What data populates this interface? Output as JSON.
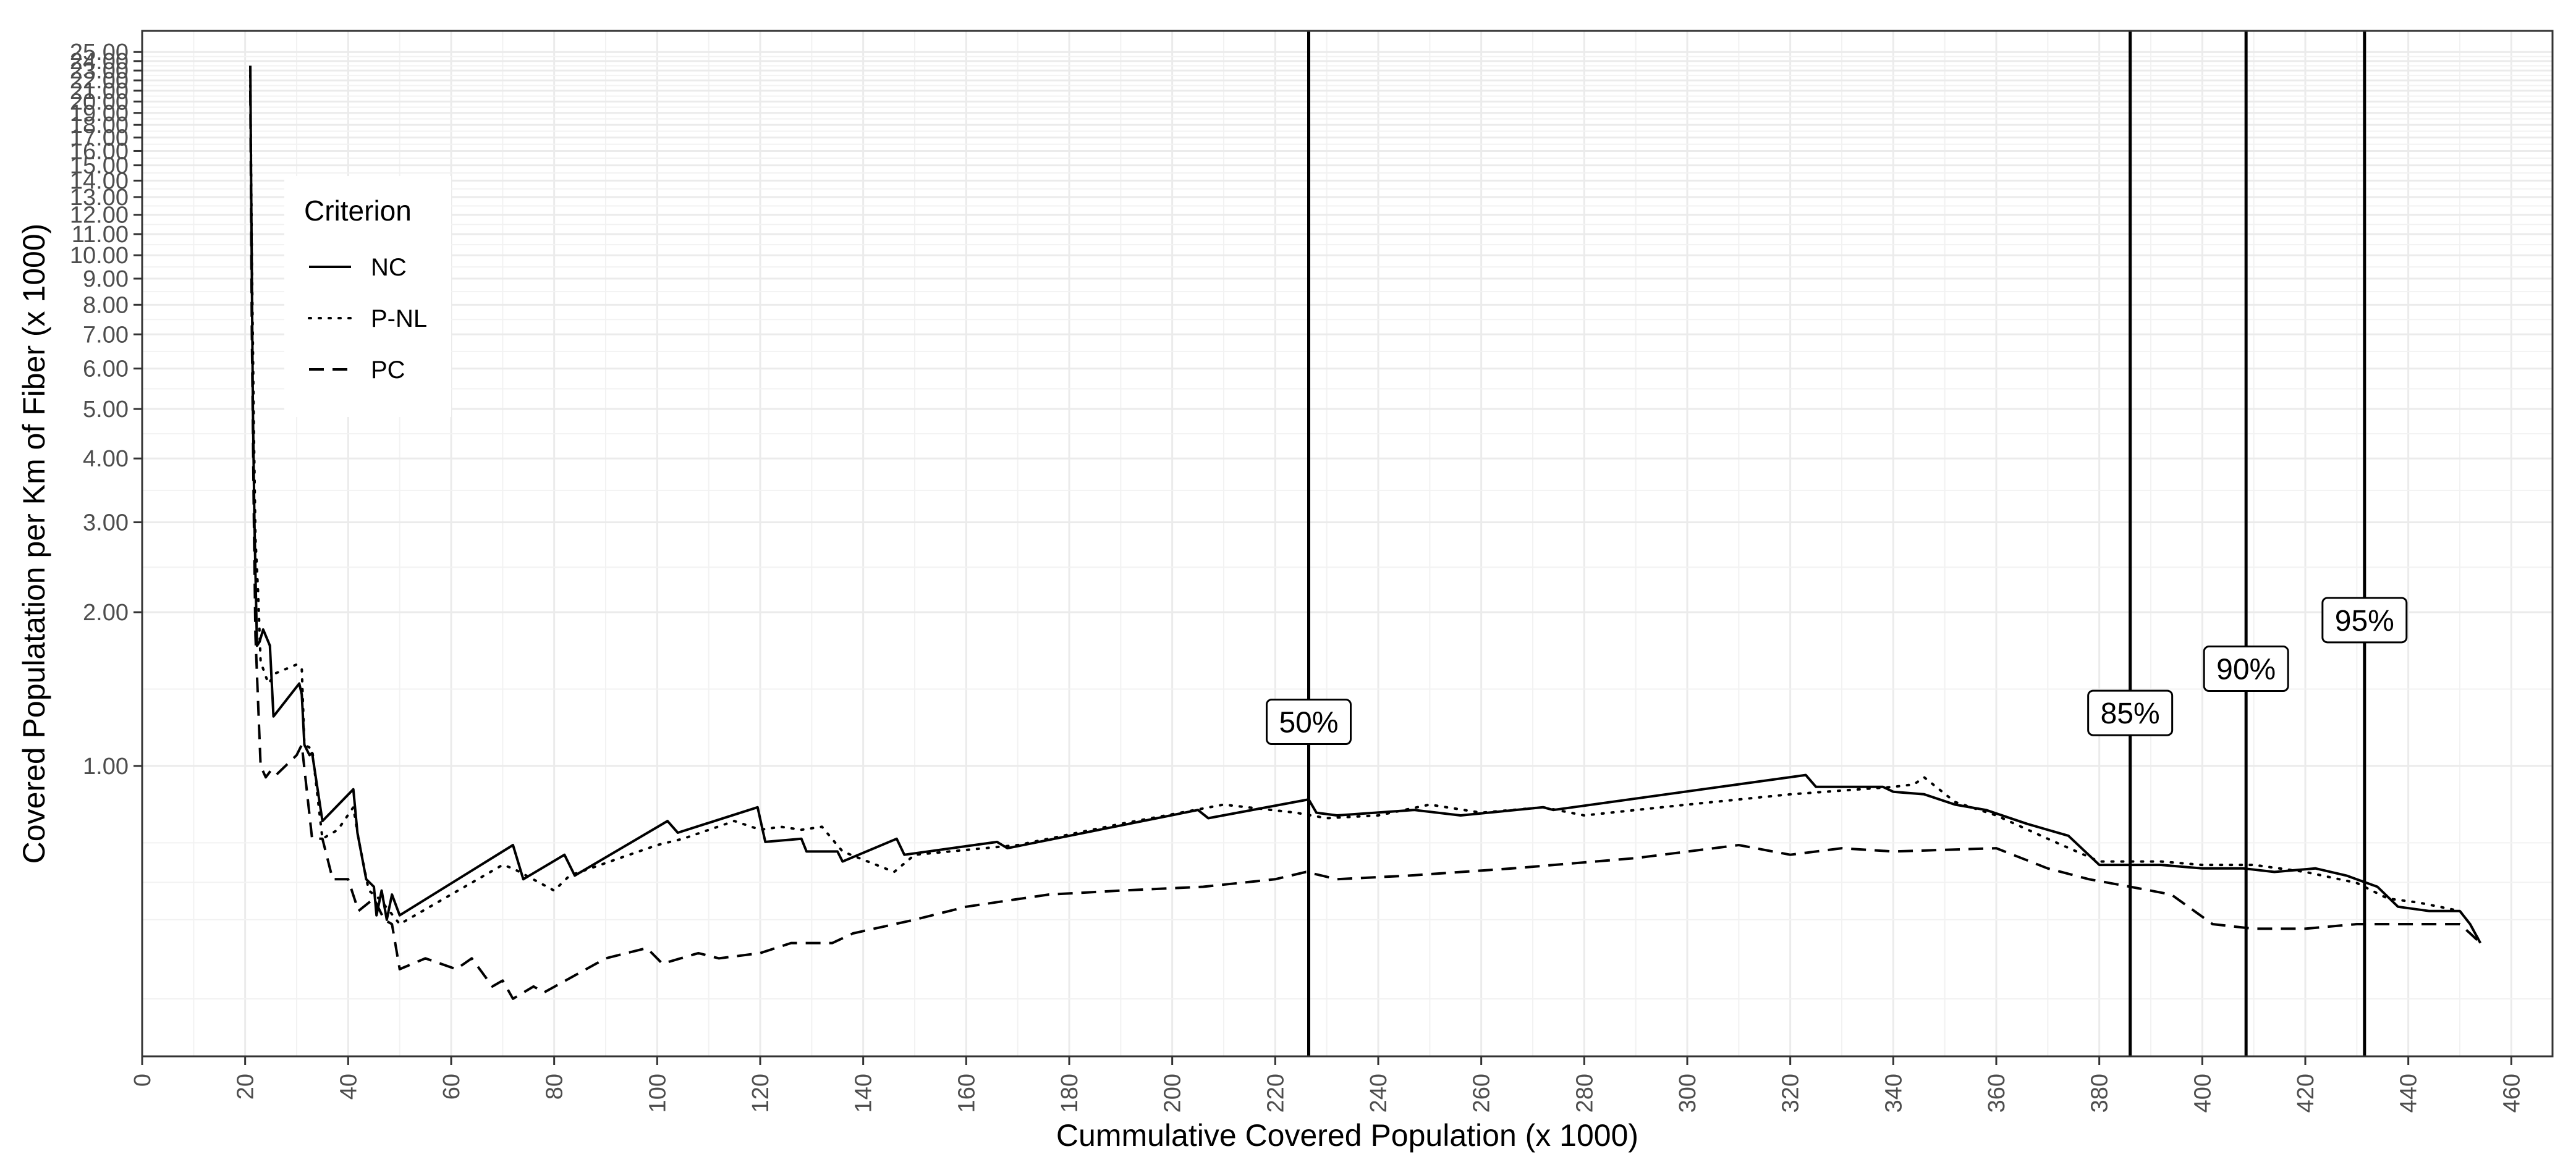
{
  "chart_data": {
    "type": "line",
    "xlabel": "Cummulative Covered Population (x 1000)",
    "ylabel": "Covered Populatation per Km of Fiber (x 1000)",
    "xlim": [
      0,
      468
    ],
    "ylim": [
      0.27,
      27.5
    ],
    "yscale": "log",
    "grid": true,
    "x_ticks": [
      0,
      20,
      40,
      60,
      80,
      100,
      120,
      140,
      160,
      180,
      200,
      220,
      240,
      260,
      280,
      300,
      320,
      340,
      360,
      380,
      400,
      420,
      440,
      460
    ],
    "y_ticks": [
      1,
      2,
      3,
      4,
      5,
      6,
      7,
      8,
      9,
      10,
      11,
      12,
      13,
      14,
      15,
      16,
      17,
      18,
      19,
      20,
      21,
      22,
      23,
      24,
      25
    ],
    "y_ticks_fmt": [
      "1.00",
      "2.00",
      "3.00",
      "4.00",
      "5.00",
      "6.00",
      "7.00",
      "8.00",
      "9.00",
      "10.00",
      "11.00",
      "12.00",
      "13.00",
      "14.00",
      "15.00",
      "16.00",
      "17.00",
      "18.00",
      "19.00",
      "20.00",
      "21.00",
      "22.00",
      "23.00",
      "24.00",
      "25.00"
    ],
    "legend": {
      "title": "Criterion",
      "position": "top-left"
    },
    "series": [
      {
        "name": "NC",
        "dash": "solid",
        "x": [
          21.0,
          21.2,
          21.5,
          21.8,
          22.0,
          22.3,
          22.8,
          23.5,
          24.8,
          25.5,
          30.5,
          31.0,
          31.5,
          32.5,
          33.0,
          35.0,
          41.0,
          41.8,
          43.5,
          45.0,
          45.5,
          46.5,
          47.5,
          48.5,
          50.0,
          72.0,
          74.0,
          82.0,
          84.0,
          102.0,
          104.0,
          119.5,
          121.0,
          128.0,
          129.0,
          135.0,
          136.0,
          146.5,
          148.0,
          166.0,
          168.0,
          205.0,
          207.0,
          226.5,
          228.0,
          232.0,
          247.0,
          256.0,
          272.0,
          274.0,
          323.0,
          325.0,
          338.0,
          340.0,
          346.0,
          352.0,
          358.0,
          366.0,
          374.0,
          380.0,
          392.0,
          400.0,
          408.0,
          414.0,
          422.0,
          428.0,
          434.0,
          438.0,
          444.0,
          450.0,
          452.0,
          454.0
        ],
        "y": [
          23.5,
          12.0,
          5.0,
          3.0,
          2.4,
          1.72,
          1.75,
          1.85,
          1.72,
          1.25,
          1.45,
          1.38,
          1.1,
          1.05,
          1.06,
          0.78,
          0.9,
          0.74,
          0.6,
          0.58,
          0.51,
          0.57,
          0.5,
          0.56,
          0.51,
          0.7,
          0.6,
          0.67,
          0.61,
          0.78,
          0.74,
          0.83,
          0.71,
          0.72,
          0.68,
          0.68,
          0.65,
          0.72,
          0.67,
          0.71,
          0.69,
          0.82,
          0.79,
          0.86,
          0.81,
          0.8,
          0.82,
          0.8,
          0.83,
          0.82,
          0.96,
          0.91,
          0.91,
          0.89,
          0.88,
          0.84,
          0.82,
          0.77,
          0.73,
          0.64,
          0.64,
          0.63,
          0.63,
          0.62,
          0.63,
          0.61,
          0.58,
          0.53,
          0.52,
          0.52,
          0.49,
          0.45
        ]
      },
      {
        "name": "P-NL",
        "dash": "dotted",
        "x": [
          21.0,
          21.3,
          21.7,
          22.0,
          22.5,
          23.0,
          24.5,
          26.0,
          30.0,
          31.0,
          31.5,
          33.0,
          35.0,
          38.0,
          41.0,
          42.0,
          44.0,
          46.0,
          48.0,
          50.0,
          70.0,
          72.0,
          80.0,
          83.0,
          100.0,
          105.0,
          115.0,
          120.0,
          124.0,
          128.0,
          132.0,
          136.0,
          146.0,
          150.0,
          170.0,
          190.0,
          210.0,
          224.0,
          230.0,
          240.0,
          250.0,
          260.0,
          272.0,
          280.0,
          300.0,
          320.0,
          340.0,
          344.0,
          346.0,
          352.0,
          360.0,
          370.0,
          380.0,
          392.0,
          400.0,
          410.0,
          420.0,
          430.0,
          436.0,
          442.0,
          446.0,
          450.0,
          452.0,
          454.0
        ],
        "y": [
          22.5,
          10.0,
          4.5,
          2.8,
          2.2,
          1.6,
          1.45,
          1.52,
          1.58,
          1.55,
          1.1,
          1.08,
          0.72,
          0.75,
          0.83,
          0.72,
          0.57,
          0.55,
          0.52,
          0.49,
          0.64,
          0.63,
          0.57,
          0.61,
          0.7,
          0.72,
          0.78,
          0.75,
          0.76,
          0.75,
          0.76,
          0.68,
          0.62,
          0.67,
          0.7,
          0.77,
          0.84,
          0.81,
          0.79,
          0.8,
          0.84,
          0.81,
          0.83,
          0.8,
          0.84,
          0.88,
          0.91,
          0.92,
          0.95,
          0.85,
          0.8,
          0.72,
          0.65,
          0.65,
          0.64,
          0.64,
          0.62,
          0.59,
          0.55,
          0.54,
          0.53,
          0.52,
          0.49,
          0.45
        ]
      },
      {
        "name": "PC",
        "dash": "dashed",
        "x": [
          21.0,
          21.3,
          21.7,
          22.0,
          23.0,
          24.0,
          25.0,
          26.0,
          30.0,
          31.0,
          33.0,
          35.0,
          37.0,
          40.0,
          42.0,
          45.0,
          47.0,
          48.5,
          50.0,
          55.0,
          61.0,
          64.0,
          68.0,
          70.0,
          72.0,
          76.0,
          78.0,
          90.0,
          98.0,
          101.0,
          108.0,
          112.0,
          120.0,
          126.0,
          134.0,
          138.0,
          150.0,
          160.0,
          176.0,
          190.0,
          206.0,
          220.0,
          226.0,
          232.0,
          246.0,
          266.0,
          290.0,
          310.0,
          320.0,
          330.0,
          340.0,
          360.0,
          370.0,
          378.0,
          386.0,
          394.0,
          402.0,
          410.0,
          420.0,
          430.0,
          440.0,
          450.0,
          452.0,
          454.0
        ],
        "y": [
          21.0,
          7.0,
          3.0,
          1.8,
          1.0,
          0.95,
          0.98,
          0.96,
          1.05,
          1.1,
          0.72,
          0.72,
          0.6,
          0.6,
          0.52,
          0.55,
          0.5,
          0.49,
          0.4,
          0.42,
          0.4,
          0.42,
          0.37,
          0.38,
          0.35,
          0.37,
          0.36,
          0.42,
          0.44,
          0.41,
          0.43,
          0.42,
          0.43,
          0.45,
          0.45,
          0.47,
          0.5,
          0.53,
          0.56,
          0.57,
          0.58,
          0.6,
          0.62,
          0.6,
          0.61,
          0.63,
          0.66,
          0.7,
          0.67,
          0.69,
          0.68,
          0.69,
          0.63,
          0.6,
          0.58,
          0.56,
          0.49,
          0.48,
          0.48,
          0.49,
          0.49,
          0.49,
          0.47,
          0.45
        ]
      }
    ],
    "vlines": [
      {
        "x": 226.5,
        "label": "50%",
        "label_y": 1.22
      },
      {
        "x": 386.0,
        "label": "85%",
        "label_y": 1.27
      },
      {
        "x": 408.5,
        "label": "90%",
        "label_y": 1.55
      },
      {
        "x": 431.5,
        "label": "95%",
        "label_y": 1.93
      }
    ]
  }
}
